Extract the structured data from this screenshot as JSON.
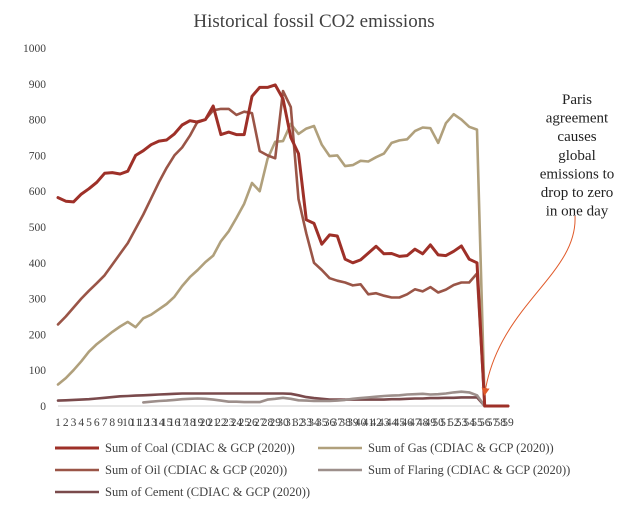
{
  "chart_data": {
    "type": "line",
    "title": "Historical fossil CO2 emissions",
    "xlabel": "",
    "ylabel": "",
    "ylim": [
      0,
      1000
    ],
    "yticks": [
      0,
      100,
      200,
      300,
      400,
      500,
      600,
      700,
      800,
      900,
      1000
    ],
    "xlim": [
      1,
      59
    ],
    "xticks": [
      1,
      2,
      3,
      4,
      5,
      6,
      7,
      8,
      9,
      10,
      11,
      12,
      13,
      14,
      15,
      16,
      17,
      18,
      19,
      20,
      21,
      22,
      23,
      24,
      25,
      26,
      27,
      28,
      29,
      30,
      31,
      32,
      33,
      34,
      35,
      36,
      37,
      38,
      39,
      40,
      41,
      42,
      43,
      44,
      45,
      46,
      47,
      48,
      49,
      50,
      51,
      52,
      53,
      54,
      55,
      56,
      57,
      58,
      59
    ],
    "grid": false,
    "legend_position": "bottom",
    "annotation": {
      "lines": [
        "Paris",
        "agreement",
        "causes",
        "global",
        "emissions to",
        "drop to zero",
        "in one day"
      ],
      "arrow_target": {
        "x": 56,
        "y": 0
      }
    },
    "series": [
      {
        "name": "Sum of Coal (CDIAC & GCP (2020))",
        "color": "#9e3028",
        "x": [
          1,
          2,
          3,
          4,
          5,
          6,
          7,
          8,
          9,
          10,
          11,
          12,
          13,
          14,
          15,
          16,
          17,
          18,
          19,
          20,
          21,
          22,
          23,
          24,
          25,
          26,
          27,
          28,
          29,
          30,
          31,
          32,
          33,
          34,
          35,
          36,
          37,
          38,
          39,
          40,
          41,
          42,
          43,
          44,
          45,
          46,
          47,
          48,
          49,
          50,
          51,
          52,
          53,
          54,
          55,
          56,
          57,
          58,
          59
        ],
        "values": [
          582,
          572,
          570,
          592,
          607,
          625,
          650,
          652,
          648,
          656,
          700,
          713,
          730,
          740,
          743,
          760,
          785,
          797,
          793,
          800,
          838,
          758,
          765,
          758,
          758,
          865,
          890,
          890,
          897,
          858,
          750,
          705,
          520,
          510,
          452,
          478,
          475,
          410,
          400,
          408,
          427,
          446,
          425,
          426,
          418,
          420,
          438,
          425,
          450,
          422,
          420,
          432,
          447,
          410,
          400,
          0,
          0,
          0,
          0
        ]
      },
      {
        "name": "Sum of Gas (CDIAC & GCP (2020))",
        "color": "#b0a07c",
        "x": [
          1,
          2,
          3,
          4,
          5,
          6,
          7,
          8,
          9,
          10,
          11,
          12,
          13,
          14,
          15,
          16,
          17,
          18,
          19,
          20,
          21,
          22,
          23,
          24,
          25,
          26,
          27,
          28,
          29,
          30,
          31,
          32,
          33,
          34,
          35,
          36,
          37,
          38,
          39,
          40,
          41,
          42,
          43,
          44,
          45,
          46,
          47,
          48,
          49,
          50,
          51,
          52,
          53,
          54,
          55,
          56,
          57,
          58,
          59
        ],
        "values": [
          60,
          78,
          100,
          125,
          152,
          173,
          190,
          207,
          222,
          235,
          220,
          245,
          255,
          270,
          285,
          305,
          335,
          360,
          380,
          402,
          420,
          460,
          488,
          525,
          565,
          623,
          600,
          690,
          738,
          740,
          788,
          760,
          775,
          782,
          730,
          698,
          700,
          670,
          673,
          685,
          683,
          695,
          705,
          735,
          742,
          745,
          768,
          778,
          776,
          735,
          790,
          815,
          800,
          780,
          772,
          0,
          0,
          0,
          0
        ]
      },
      {
        "name": "Sum of Oil (CDIAC & GCP (2020))",
        "color": "#9a5547",
        "x": [
          1,
          2,
          3,
          4,
          5,
          6,
          7,
          8,
          9,
          10,
          11,
          12,
          13,
          14,
          15,
          16,
          17,
          18,
          19,
          20,
          21,
          22,
          23,
          24,
          25,
          26,
          27,
          28,
          29,
          30,
          31,
          32,
          33,
          34,
          35,
          36,
          37,
          38,
          39,
          40,
          41,
          42,
          43,
          44,
          45,
          46,
          47,
          48,
          49,
          50,
          51,
          52,
          53,
          54,
          55,
          56,
          57,
          58,
          59
        ],
        "values": [
          228,
          250,
          275,
          300,
          322,
          343,
          365,
          395,
          425,
          455,
          495,
          535,
          580,
          625,
          665,
          700,
          722,
          755,
          795,
          800,
          826,
          830,
          830,
          813,
          822,
          818,
          712,
          700,
          692,
          880,
          835,
          578,
          482,
          400,
          380,
          357,
          350,
          345,
          337,
          340,
          312,
          315,
          308,
          303,
          303,
          312,
          326,
          320,
          332,
          317,
          325,
          338,
          345,
          345,
          370,
          0,
          0,
          0,
          0
        ]
      },
      {
        "name": "Sum of Flaring (CDIAC & GCP (2020))",
        "color": "#9d8f8b",
        "x": [
          12,
          13,
          14,
          15,
          16,
          17,
          18,
          19,
          20,
          21,
          22,
          23,
          24,
          25,
          26,
          27,
          28,
          29,
          30,
          31,
          32,
          33,
          34,
          35,
          36,
          37,
          38,
          39,
          40,
          41,
          42,
          43,
          44,
          45,
          46,
          47,
          48,
          49,
          50,
          51,
          52,
          53,
          54,
          55,
          56,
          57,
          58,
          59
        ],
        "values": [
          10,
          12,
          14,
          15,
          17,
          19,
          20,
          21,
          20,
          18,
          15,
          12,
          12,
          11,
          11,
          11,
          18,
          20,
          23,
          20,
          16,
          15,
          14,
          14,
          14,
          15,
          17,
          20,
          22,
          24,
          26,
          28,
          29,
          30,
          32,
          33,
          34,
          32,
          33,
          35,
          38,
          40,
          38,
          30,
          0,
          0,
          0,
          0
        ]
      },
      {
        "name": "Sum of Cement (CDIAC & GCP (2020))",
        "color": "#7a4a4c",
        "x": [
          1,
          2,
          3,
          4,
          5,
          6,
          7,
          8,
          9,
          10,
          11,
          12,
          13,
          14,
          15,
          16,
          17,
          18,
          19,
          20,
          21,
          22,
          23,
          24,
          25,
          26,
          27,
          28,
          29,
          30,
          31,
          32,
          33,
          34,
          35,
          36,
          37,
          38,
          39,
          40,
          41,
          42,
          43,
          44,
          45,
          46,
          47,
          48,
          49,
          50,
          51,
          52,
          53,
          54,
          55,
          56,
          57,
          58,
          59
        ],
        "values": [
          15,
          16,
          17,
          18,
          19,
          21,
          23,
          25,
          27,
          28,
          29,
          30,
          31,
          32,
          33,
          34,
          35,
          35,
          35,
          35,
          35,
          35,
          35,
          35,
          35,
          35,
          35,
          35,
          35,
          35,
          34,
          30,
          25,
          22,
          20,
          18,
          18,
          18,
          18,
          18,
          18,
          18,
          18,
          19,
          19,
          20,
          21,
          21,
          22,
          22,
          23,
          23,
          24,
          24,
          24,
          0,
          0,
          0,
          0
        ]
      }
    ]
  }
}
